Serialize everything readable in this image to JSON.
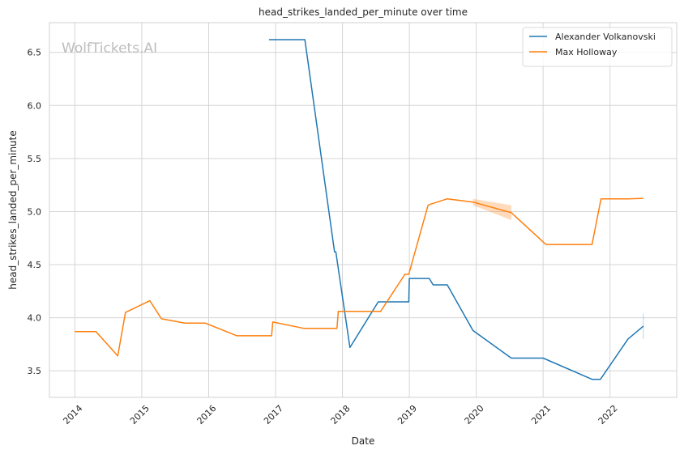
{
  "chart_data": {
    "type": "line",
    "title": "head_strikes_landed_per_minute over time",
    "xlabel": "Date",
    "ylabel": "head_strikes_landed_per_minute",
    "watermark": "WolfTickets.AI",
    "x_ticks": [
      "2014",
      "2015",
      "2016",
      "2017",
      "2018",
      "2019",
      "2020",
      "2021",
      "2022"
    ],
    "y_ticks": [
      "3.5",
      "4.0",
      "4.5",
      "5.0",
      "5.5",
      "6.0",
      "6.5"
    ],
    "xlim": [
      "2013-08-15",
      "2022-12-31"
    ],
    "ylim": [
      3.25,
      6.78
    ],
    "grid": true,
    "legend_position": "top-right",
    "series": [
      {
        "name": "Alexander Volkanovski",
        "color": "#1f77b4",
        "points": [
          [
            "2016-11-26",
            6.62
          ],
          [
            "2017-06-10",
            6.62
          ],
          [
            "2017-11-19",
            4.62
          ],
          [
            "2017-11-26",
            4.62
          ],
          [
            "2018-02-11",
            3.72
          ],
          [
            "2018-07-15",
            4.15
          ],
          [
            "2018-12-29",
            4.15
          ],
          [
            "2019-01-01",
            4.37
          ],
          [
            "2019-04-20",
            4.37
          ],
          [
            "2019-05-11",
            4.31
          ],
          [
            "2019-07-27",
            4.31
          ],
          [
            "2019-12-14",
            3.88
          ],
          [
            "2020-07-11",
            3.62
          ],
          [
            "2021-01-01",
            3.62
          ],
          [
            "2021-09-25",
            3.42
          ],
          [
            "2021-11-10",
            3.42
          ],
          [
            "2022-04-09",
            3.8
          ],
          [
            "2022-07-02",
            3.92
          ]
        ],
        "band": [
          [
            "2022-07-02",
            3.8,
            4.04
          ]
        ]
      },
      {
        "name": "Max Holloway",
        "color": "#ff7f0e",
        "points": [
          [
            "2014-01-01",
            3.87
          ],
          [
            "2014-04-26",
            3.87
          ],
          [
            "2014-08-23",
            3.64
          ],
          [
            "2014-10-04",
            4.05
          ],
          [
            "2015-02-14",
            4.16
          ],
          [
            "2015-04-18",
            3.99
          ],
          [
            "2015-08-23",
            3.95
          ],
          [
            "2015-12-12",
            3.95
          ],
          [
            "2016-06-04",
            3.83
          ],
          [
            "2016-12-10",
            3.83
          ],
          [
            "2016-12-17",
            3.96
          ],
          [
            "2017-06-03",
            3.9
          ],
          [
            "2017-12-02",
            3.9
          ],
          [
            "2017-12-09",
            4.06
          ],
          [
            "2018-07-28",
            4.06
          ],
          [
            "2018-12-08",
            4.41
          ],
          [
            "2018-12-29",
            4.41
          ],
          [
            "2019-04-13",
            5.06
          ],
          [
            "2019-04-27",
            5.07
          ],
          [
            "2019-07-27",
            5.12
          ],
          [
            "2019-12-14",
            5.09
          ],
          [
            "2020-07-11",
            4.99
          ],
          [
            "2021-01-16",
            4.69
          ],
          [
            "2021-09-25",
            4.69
          ],
          [
            "2021-11-13",
            5.12
          ],
          [
            "2022-04-09",
            5.12
          ],
          [
            "2022-07-02",
            5.125
          ]
        ],
        "band": [
          [
            "2019-12-14",
            5.06,
            5.12
          ],
          [
            "2020-07-11",
            4.92,
            5.06
          ]
        ]
      }
    ]
  }
}
